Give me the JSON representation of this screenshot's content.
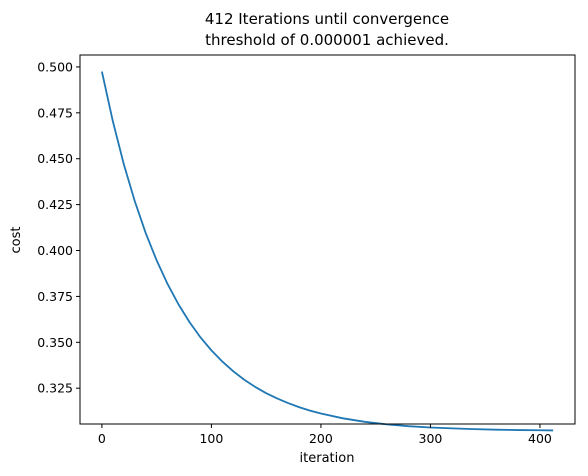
{
  "chart_data": {
    "type": "line",
    "title_lines": [
      "412 Iterations until convergence",
      "threshold of 0.000001 achieved."
    ],
    "xlabel": "iteration",
    "ylabel": "cost",
    "xlim": [
      -20,
      432
    ],
    "ylim": [
      0.3055,
      0.5065
    ],
    "xticks": [
      0,
      100,
      200,
      300,
      400
    ],
    "yticks": [
      0.325,
      0.35,
      0.375,
      0.4,
      0.425,
      0.45,
      0.475,
      0.5
    ],
    "xtick_labels": [
      "0",
      "100",
      "200",
      "300",
      "400"
    ],
    "ytick_labels": [
      "0.325",
      "0.350",
      "0.375",
      "0.400",
      "0.425",
      "0.450",
      "0.475",
      "0.500"
    ],
    "grid": false,
    "line_color": "#1f77b4",
    "series": [
      {
        "x": [
          0,
          10,
          20,
          30,
          40,
          50,
          60,
          70,
          80,
          90,
          100,
          110,
          120,
          130,
          140,
          150,
          160,
          170,
          180,
          190,
          200,
          220,
          240,
          260,
          280,
          300,
          320,
          340,
          360,
          380,
          400,
          412
        ],
        "values": [
          0.4975,
          0.4704,
          0.447,
          0.4269,
          0.4095,
          0.3946,
          0.3817,
          0.3706,
          0.361,
          0.3527,
          0.3456,
          0.3395,
          0.3342,
          0.3296,
          0.3257,
          0.3223,
          0.3194,
          0.3169,
          0.3147,
          0.3128,
          0.3112,
          0.3086,
          0.3067,
          0.3053,
          0.3043,
          0.3036,
          0.3031,
          0.3027,
          0.3024,
          0.3022,
          0.3021,
          0.302
        ]
      }
    ]
  }
}
